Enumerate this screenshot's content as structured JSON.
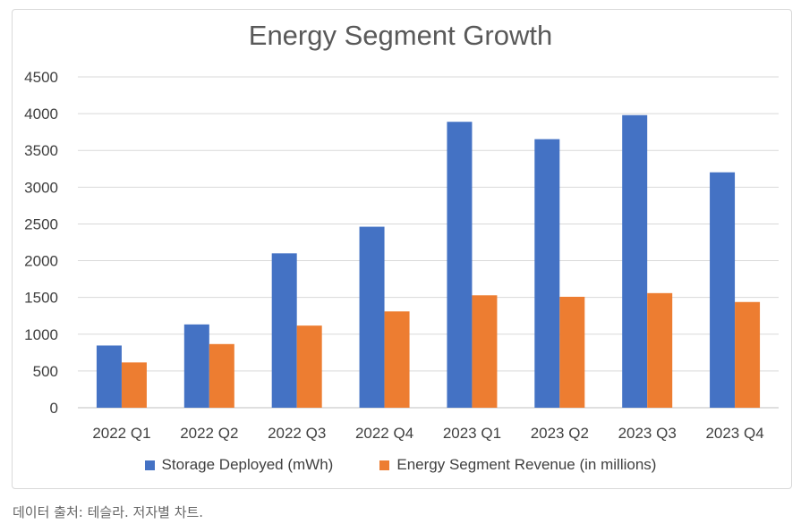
{
  "chart_data": {
    "type": "bar",
    "title": "Energy Segment Growth",
    "categories": [
      "2022 Q1",
      "2022 Q2",
      "2022 Q3",
      "2022 Q4",
      "2023 Q1",
      "2023 Q2",
      "2023 Q3",
      "2023 Q4"
    ],
    "series": [
      {
        "name": "Storage Deployed (mWh)",
        "color": "#4472c4",
        "values": [
          846,
          1133,
          2100,
          2462,
          3889,
          3653,
          3980,
          3202
        ]
      },
      {
        "name": "Energy Segment Revenue (in millions)",
        "color": "#ed7d31",
        "values": [
          616,
          866,
          1117,
          1310,
          1529,
          1509,
          1559,
          1438
        ]
      }
    ],
    "ylim": [
      0,
      4500
    ],
    "yticks": [
      "0",
      "500",
      "1000",
      "1500",
      "2000",
      "2500",
      "3000",
      "3500",
      "4000",
      "4500"
    ],
    "grid": true,
    "legend_position": "bottom"
  },
  "caption": "데이터 출처: 테슬라. 저자별 차트."
}
